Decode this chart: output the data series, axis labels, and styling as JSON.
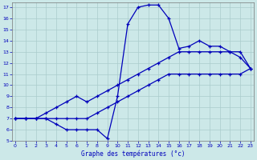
{
  "xlabel": "Graphe des températures (°c)",
  "background_color": "#cce8e8",
  "grid_color": "#aacccc",
  "line_color": "#0000bb",
  "yticks": [
    5,
    6,
    7,
    8,
    9,
    10,
    11,
    12,
    13,
    14,
    15,
    16,
    17
  ],
  "xticks": [
    0,
    1,
    2,
    3,
    4,
    5,
    6,
    7,
    8,
    9,
    10,
    11,
    12,
    13,
    14,
    15,
    16,
    17,
    18,
    19,
    20,
    21,
    22,
    23
  ],
  "line_peak_y": [
    7.0,
    7.0,
    7.0,
    7.0,
    6.5,
    6.0,
    6.0,
    6.0,
    6.0,
    5.2,
    9.0,
    15.5,
    17.0,
    17.2,
    17.2,
    16.0,
    13.3,
    13.5,
    14.0,
    13.5,
    13.5,
    13.0,
    13.0,
    11.5
  ],
  "line_mid_y": [
    7.0,
    7.0,
    7.0,
    7.5,
    8.0,
    8.5,
    9.0,
    8.5,
    9.0,
    9.5,
    10.0,
    10.5,
    11.0,
    11.5,
    12.0,
    12.5,
    13.0,
    13.0,
    13.0,
    13.0,
    13.0,
    13.0,
    12.5,
    11.5
  ],
  "line_low_y": [
    7.0,
    7.0,
    7.0,
    7.0,
    7.0,
    7.0,
    7.0,
    7.0,
    7.5,
    8.0,
    8.5,
    9.0,
    9.5,
    10.0,
    10.5,
    11.0,
    11.0,
    11.0,
    11.0,
    11.0,
    11.0,
    11.0,
    11.0,
    11.5
  ]
}
